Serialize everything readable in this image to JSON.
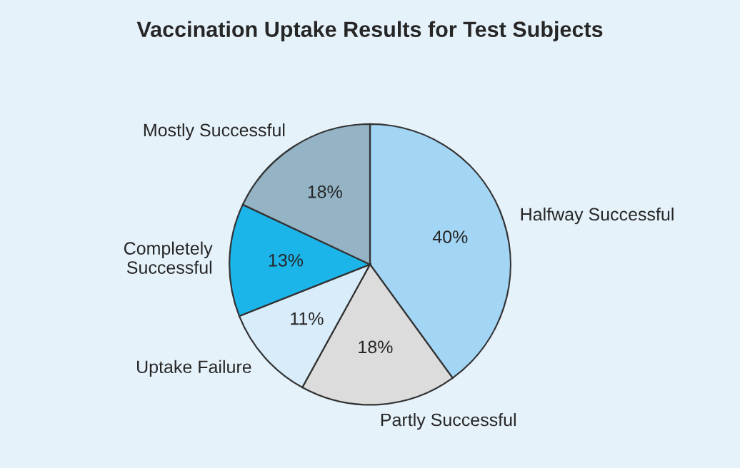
{
  "chart_data": {
    "type": "pie",
    "title": "Vaccination Uptake Results for Test Subjects",
    "categories": [
      "Halfway Successful",
      "Partly Successful",
      "Uptake Failure",
      "Completely\nSuccessful",
      "Mostly Successful"
    ],
    "values": [
      40,
      18,
      11,
      13,
      18
    ],
    "colors": [
      "#a3d5f4",
      "#dcdcdc",
      "#d8edf9",
      "#1bb5ea",
      "#94b3c5"
    ],
    "value_labels": [
      "40%",
      "18%",
      "11%",
      "13%",
      "18%"
    ]
  }
}
